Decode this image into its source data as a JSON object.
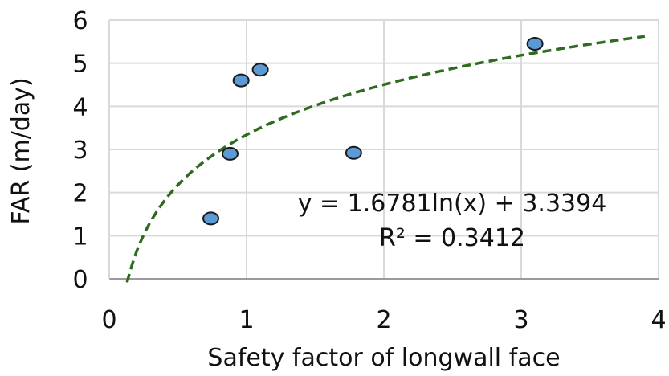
{
  "chart_data": {
    "type": "scatter",
    "title": "",
    "xlabel": "Safety factor of longwall face",
    "ylabel": "FAR (m/day)",
    "xlim": [
      0,
      4
    ],
    "ylim": [
      0,
      6
    ],
    "xticks": [
      "0",
      "1",
      "2",
      "3",
      "4"
    ],
    "yticks": [
      "0",
      "1",
      "2",
      "3",
      "4",
      "5",
      "6"
    ],
    "grid": true,
    "series": [
      {
        "color": "#5b9bd5",
        "points": [
          {
            "x": 0.74,
            "y": 1.4
          },
          {
            "x": 0.88,
            "y": 2.9
          },
          {
            "x": 0.96,
            "y": 4.6
          },
          {
            "x": 1.1,
            "y": 4.85
          },
          {
            "x": 1.78,
            "y": 2.92
          },
          {
            "x": 3.1,
            "y": 5.45
          }
        ]
      }
    ],
    "trendline": {
      "type": "logarithmic",
      "a": 1.6781,
      "b": 3.3394,
      "x_range": [
        0.13,
        3.9
      ],
      "color": "#2e6b1f",
      "style": "dashed"
    },
    "annotations": [
      "y = 1.6781ln(x) + 3.3394",
      "R² = 0.3412"
    ]
  }
}
